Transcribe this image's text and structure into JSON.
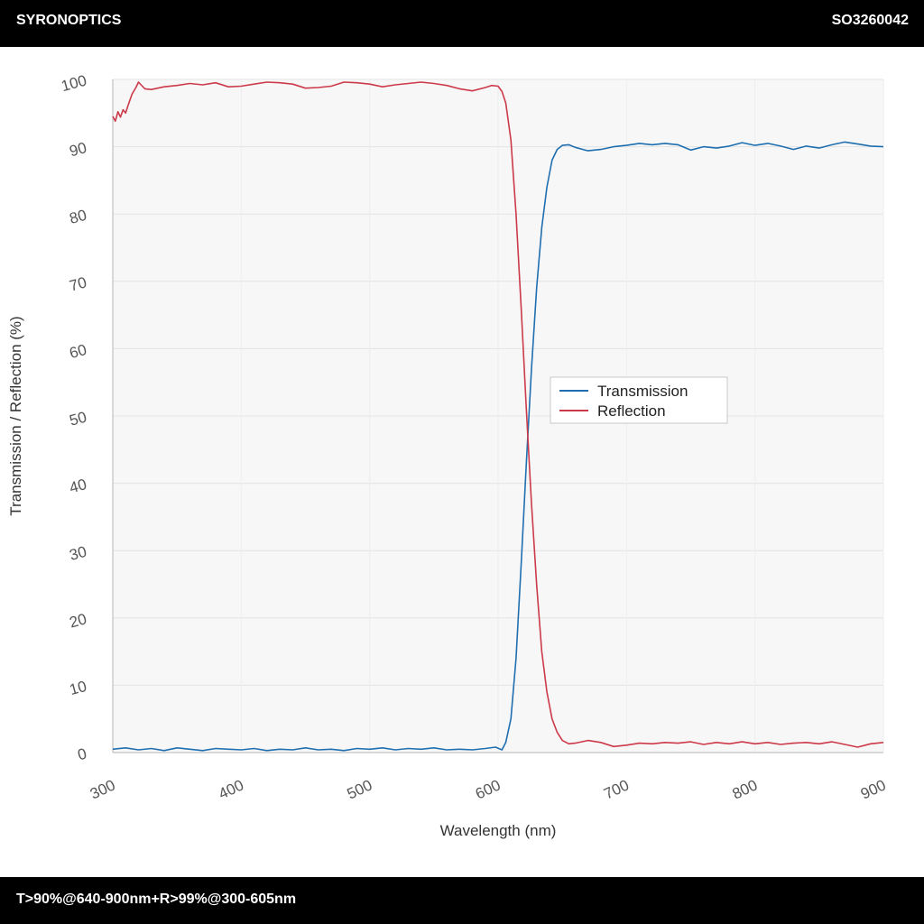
{
  "header": {
    "brand": "SYRONOPTICS",
    "part_number": "SO3260042"
  },
  "footer": {
    "spec": "T>90%@640-900nm+R>99%@300-605nm"
  },
  "colors": {
    "transmission": "#1f6fb0",
    "reflection": "#cc3a4a",
    "plot_background": "#f7f7f7",
    "grid": "#e4e4e4"
  },
  "chart_data": {
    "type": "line",
    "title": "",
    "xlabel": "Wavelength (nm)",
    "ylabel": "Transmission / Reflection (%)",
    "xlim": [
      300,
      900
    ],
    "ylim": [
      0,
      100
    ],
    "x_ticks": [
      300,
      400,
      500,
      600,
      700,
      800,
      900
    ],
    "y_ticks": [
      0,
      10,
      20,
      30,
      40,
      50,
      60,
      70,
      80,
      90,
      100
    ],
    "grid": true,
    "legend_position": "center-right",
    "series": [
      {
        "name": "Transmission",
        "color": "#1f6fb0",
        "points": [
          [
            300,
            0.5
          ],
          [
            310,
            0.7
          ],
          [
            320,
            0.4
          ],
          [
            330,
            0.6
          ],
          [
            340,
            0.3
          ],
          [
            350,
            0.7
          ],
          [
            360,
            0.5
          ],
          [
            370,
            0.3
          ],
          [
            380,
            0.6
          ],
          [
            390,
            0.5
          ],
          [
            400,
            0.4
          ],
          [
            410,
            0.6
          ],
          [
            420,
            0.3
          ],
          [
            430,
            0.5
          ],
          [
            440,
            0.4
          ],
          [
            450,
            0.7
          ],
          [
            460,
            0.4
          ],
          [
            470,
            0.5
          ],
          [
            480,
            0.3
          ],
          [
            490,
            0.6
          ],
          [
            500,
            0.5
          ],
          [
            510,
            0.7
          ],
          [
            520,
            0.4
          ],
          [
            530,
            0.6
          ],
          [
            540,
            0.5
          ],
          [
            550,
            0.7
          ],
          [
            560,
            0.4
          ],
          [
            570,
            0.5
          ],
          [
            580,
            0.4
          ],
          [
            590,
            0.6
          ],
          [
            598,
            0.8
          ],
          [
            603,
            0.4
          ],
          [
            606,
            1.5
          ],
          [
            610,
            5
          ],
          [
            614,
            14
          ],
          [
            618,
            28
          ],
          [
            622,
            43
          ],
          [
            626,
            57
          ],
          [
            630,
            69
          ],
          [
            634,
            78
          ],
          [
            638,
            84
          ],
          [
            642,
            88
          ],
          [
            646,
            89.6
          ],
          [
            650,
            90.2
          ],
          [
            655,
            90.3
          ],
          [
            660,
            89.9
          ],
          [
            670,
            89.4
          ],
          [
            680,
            89.6
          ],
          [
            690,
            90.0
          ],
          [
            700,
            90.2
          ],
          [
            710,
            90.5
          ],
          [
            720,
            90.3
          ],
          [
            730,
            90.5
          ],
          [
            740,
            90.3
          ],
          [
            750,
            89.5
          ],
          [
            760,
            90.0
          ],
          [
            770,
            89.8
          ],
          [
            780,
            90.1
          ],
          [
            790,
            90.6
          ],
          [
            800,
            90.2
          ],
          [
            810,
            90.5
          ],
          [
            820,
            90.1
          ],
          [
            830,
            89.6
          ],
          [
            840,
            90.1
          ],
          [
            850,
            89.8
          ],
          [
            860,
            90.3
          ],
          [
            870,
            90.7
          ],
          [
            880,
            90.4
          ],
          [
            890,
            90.1
          ],
          [
            900,
            90.0
          ]
        ]
      },
      {
        "name": "Reflection",
        "color": "#cc3a4a",
        "points": [
          [
            300,
            94.5
          ],
          [
            302,
            93.8
          ],
          [
            304,
            95.2
          ],
          [
            306,
            94.4
          ],
          [
            308,
            95.5
          ],
          [
            310,
            95.0
          ],
          [
            312,
            96.2
          ],
          [
            315,
            97.8
          ],
          [
            318,
            98.8
          ],
          [
            320,
            99.6
          ],
          [
            322,
            99.2
          ],
          [
            325,
            98.6
          ],
          [
            330,
            98.5
          ],
          [
            340,
            98.9
          ],
          [
            350,
            99.1
          ],
          [
            360,
            99.4
          ],
          [
            370,
            99.2
          ],
          [
            380,
            99.5
          ],
          [
            390,
            98.9
          ],
          [
            400,
            99.0
          ],
          [
            410,
            99.3
          ],
          [
            420,
            99.6
          ],
          [
            430,
            99.5
          ],
          [
            440,
            99.3
          ],
          [
            450,
            98.7
          ],
          [
            460,
            98.8
          ],
          [
            470,
            99.0
          ],
          [
            480,
            99.6
          ],
          [
            490,
            99.5
          ],
          [
            500,
            99.3
          ],
          [
            510,
            98.9
          ],
          [
            520,
            99.2
          ],
          [
            530,
            99.4
          ],
          [
            540,
            99.6
          ],
          [
            550,
            99.4
          ],
          [
            560,
            99.1
          ],
          [
            570,
            98.6
          ],
          [
            580,
            98.3
          ],
          [
            590,
            98.8
          ],
          [
            595,
            99.1
          ],
          [
            600,
            99.0
          ],
          [
            603,
            98.2
          ],
          [
            606,
            96.5
          ],
          [
            610,
            91
          ],
          [
            614,
            80
          ],
          [
            618,
            66
          ],
          [
            622,
            51
          ],
          [
            626,
            37
          ],
          [
            630,
            25
          ],
          [
            634,
            15
          ],
          [
            638,
            9
          ],
          [
            642,
            5
          ],
          [
            646,
            3
          ],
          [
            650,
            1.8
          ],
          [
            655,
            1.3
          ],
          [
            660,
            1.4
          ],
          [
            670,
            1.8
          ],
          [
            680,
            1.5
          ],
          [
            690,
            0.9
          ],
          [
            700,
            1.1
          ],
          [
            710,
            1.4
          ],
          [
            720,
            1.3
          ],
          [
            730,
            1.5
          ],
          [
            740,
            1.4
          ],
          [
            750,
            1.6
          ],
          [
            760,
            1.2
          ],
          [
            770,
            1.5
          ],
          [
            780,
            1.3
          ],
          [
            790,
            1.6
          ],
          [
            800,
            1.3
          ],
          [
            810,
            1.5
          ],
          [
            820,
            1.2
          ],
          [
            830,
            1.4
          ],
          [
            840,
            1.5
          ],
          [
            850,
            1.3
          ],
          [
            860,
            1.6
          ],
          [
            870,
            1.2
          ],
          [
            880,
            0.8
          ],
          [
            890,
            1.3
          ],
          [
            900,
            1.5
          ]
        ]
      }
    ]
  }
}
